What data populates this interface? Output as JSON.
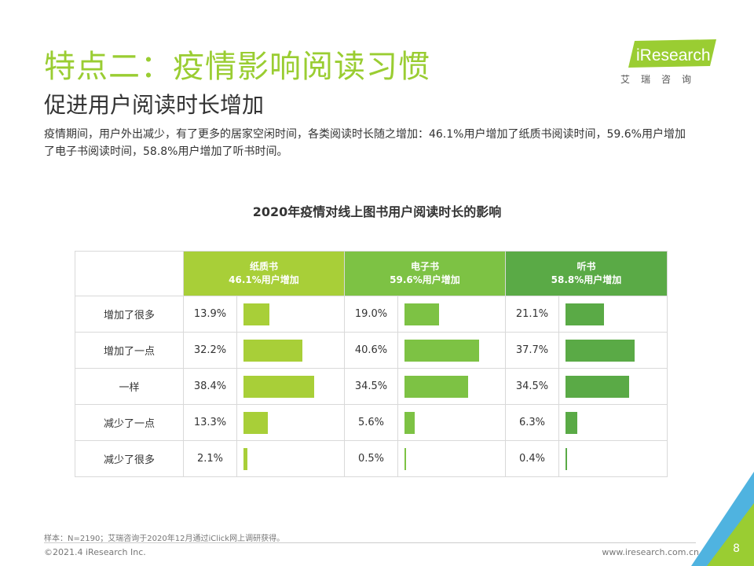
{
  "title": "特点二：疫情影响阅读习惯",
  "subtitle": "促进用户阅读时长增加",
  "description": "疫情期间，用户外出减少，有了更多的居家空闲时间，各类阅读时长随之增加：46.1%用户增加了纸质书阅读时间，59.6%用户增加了电子书阅读时间，58.8%用户增加了听书时间。",
  "logo": {
    "brand": "iResearch",
    "cn": "艾瑞咨询"
  },
  "colors": {
    "accent": "#9acd32",
    "paper": "#a8cf38",
    "ebook": "#7dc244",
    "audio": "#5aaa46"
  },
  "chart_data": {
    "type": "table",
    "title": "2020年疫情对线上图书用户阅读时长的影响",
    "categories": [
      "增加了很多",
      "增加了一点",
      "一样",
      "减少了一点",
      "减少了很多"
    ],
    "series": [
      {
        "name": "纸质书",
        "summary": "46.1%用户增加",
        "values": [
          13.9,
          32.2,
          38.4,
          13.3,
          2.1
        ],
        "labels": [
          "13.9%",
          "32.2%",
          "38.4%",
          "13.3%",
          "2.1%"
        ]
      },
      {
        "name": "电子书",
        "summary": "59.6%用户增加",
        "values": [
          19.0,
          40.6,
          34.5,
          5.6,
          0.5
        ],
        "labels": [
          "19.0%",
          "40.6%",
          "34.5%",
          "5.6%",
          "0.5%"
        ]
      },
      {
        "name": "听书",
        "summary": "58.8%用户增加",
        "values": [
          21.1,
          37.7,
          34.5,
          6.3,
          0.4
        ],
        "labels": [
          "21.1%",
          "37.7%",
          "34.5%",
          "6.3%",
          "0.4%"
        ]
      }
    ],
    "value_max": 40.6
  },
  "footer": {
    "note": "样本：N=2190；艾瑞咨询于2020年12月通过iClick网上调研获得。",
    "copyright": "©2021.4 iResearch Inc.",
    "url": "www.iresearch.com.cn",
    "page": "8"
  }
}
